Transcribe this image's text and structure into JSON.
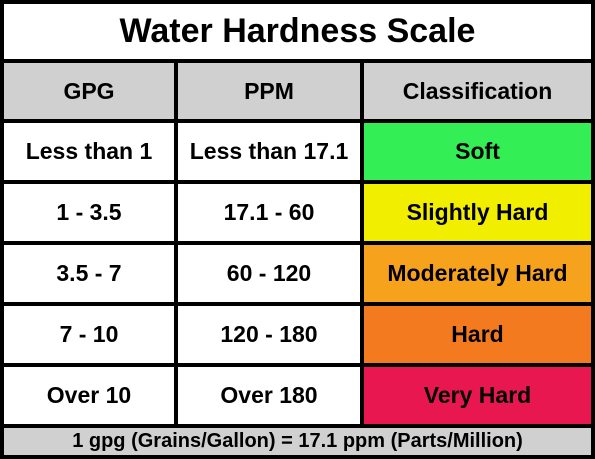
{
  "title": "Water Hardness Scale",
  "headers": {
    "gpg": "GPG",
    "ppm": "PPM",
    "classification": "Classification"
  },
  "rows": [
    {
      "gpg": "Less than 1",
      "ppm": "Less than 17.1",
      "classification": "Soft",
      "color": "#33ee55"
    },
    {
      "gpg": "1 - 3.5",
      "ppm": "17.1 - 60",
      "classification": "Slightly Hard",
      "color": "#f2ee00"
    },
    {
      "gpg": "3.5 - 7",
      "ppm": "60 - 120",
      "classification": "Moderately Hard",
      "color": "#f7a21c"
    },
    {
      "gpg": "7 - 10",
      "ppm": "120 - 180",
      "classification": "Hard",
      "color": "#f47a20"
    },
    {
      "gpg": "Over 10",
      "ppm": "Over 180",
      "classification": "Very Hard",
      "color": "#e8174f"
    }
  ],
  "footer": "1 gpg (Grains/Gallon) = 17.1 ppm (Parts/Million)",
  "colors": {
    "border": "#000000",
    "header_bg": "#d0d0d0",
    "cell_bg": "#ffffff"
  }
}
